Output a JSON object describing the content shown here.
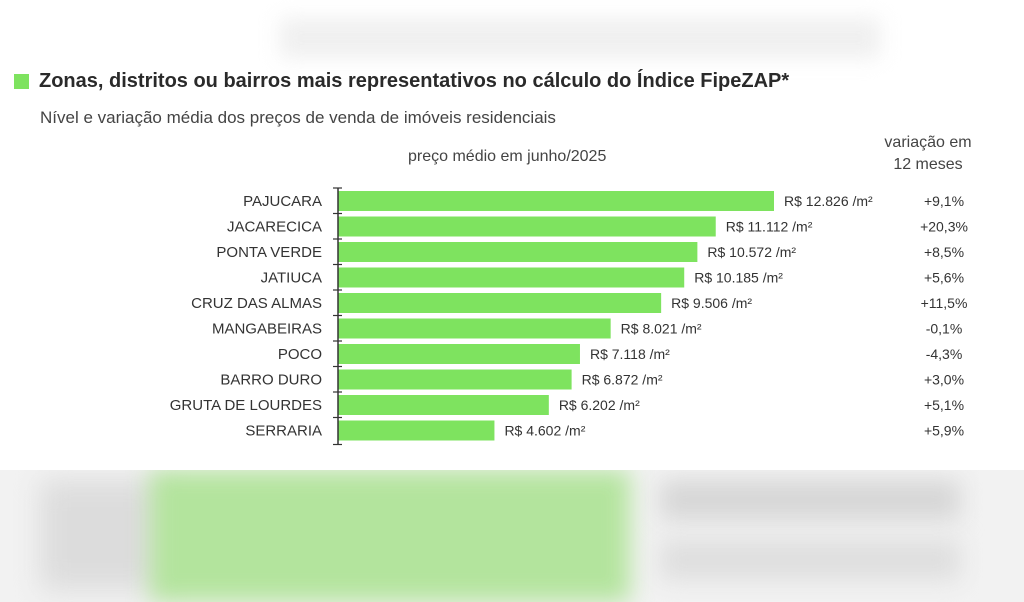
{
  "title": "Zonas, distritos ou bairros mais representativos no cálculo do Índice FipeZAP*",
  "subtitle": "Nível e variação média dos preços de venda de imóveis residenciais",
  "price_header": "preço médio em junho/2025",
  "variation_header": [
    "variação em",
    "12 meses"
  ],
  "colors": {
    "bar": "#7ee35f",
    "axis": "#333333",
    "text": "#333333"
  },
  "chart_data": {
    "type": "bar",
    "orientation": "horizontal",
    "title": "Zonas, distritos ou bairros mais representativos no cálculo do Índice FipeZAP*",
    "subtitle": "Nível e variação média dos preços de venda de imóveis residenciais",
    "categories": [
      "PAJUCARA",
      "JACARECICA",
      "PONTA VERDE",
      "JATIUCA",
      "CRUZ DAS ALMAS",
      "MANGABEIRAS",
      "POCO",
      "BARRO DURO",
      "GRUTA DE LOURDES",
      "SERRARIA"
    ],
    "values": [
      12826,
      11112,
      10572,
      10185,
      9506,
      8021,
      7118,
      6872,
      6202,
      4602
    ],
    "value_labels": [
      "R$ 12.826 /m²",
      "R$ 11.112 /m²",
      "R$ 10.572 /m²",
      "R$ 10.185 /m²",
      "R$ 9.506 /m²",
      "R$ 8.021 /m²",
      "R$ 7.118 /m²",
      "R$ 6.872 /m²",
      "R$ 6.202 /m²",
      "R$ 4.602 /m²"
    ],
    "variation_12m": [
      "+9,1%",
      "+20,3%",
      "+8,5%",
      "+5,6%",
      "+11,5%",
      "-0,1%",
      "-4,3%",
      "+3,0%",
      "+5,1%",
      "+5,9%"
    ],
    "xlim": [
      0,
      12826
    ],
    "grid": false,
    "legend": "none"
  }
}
